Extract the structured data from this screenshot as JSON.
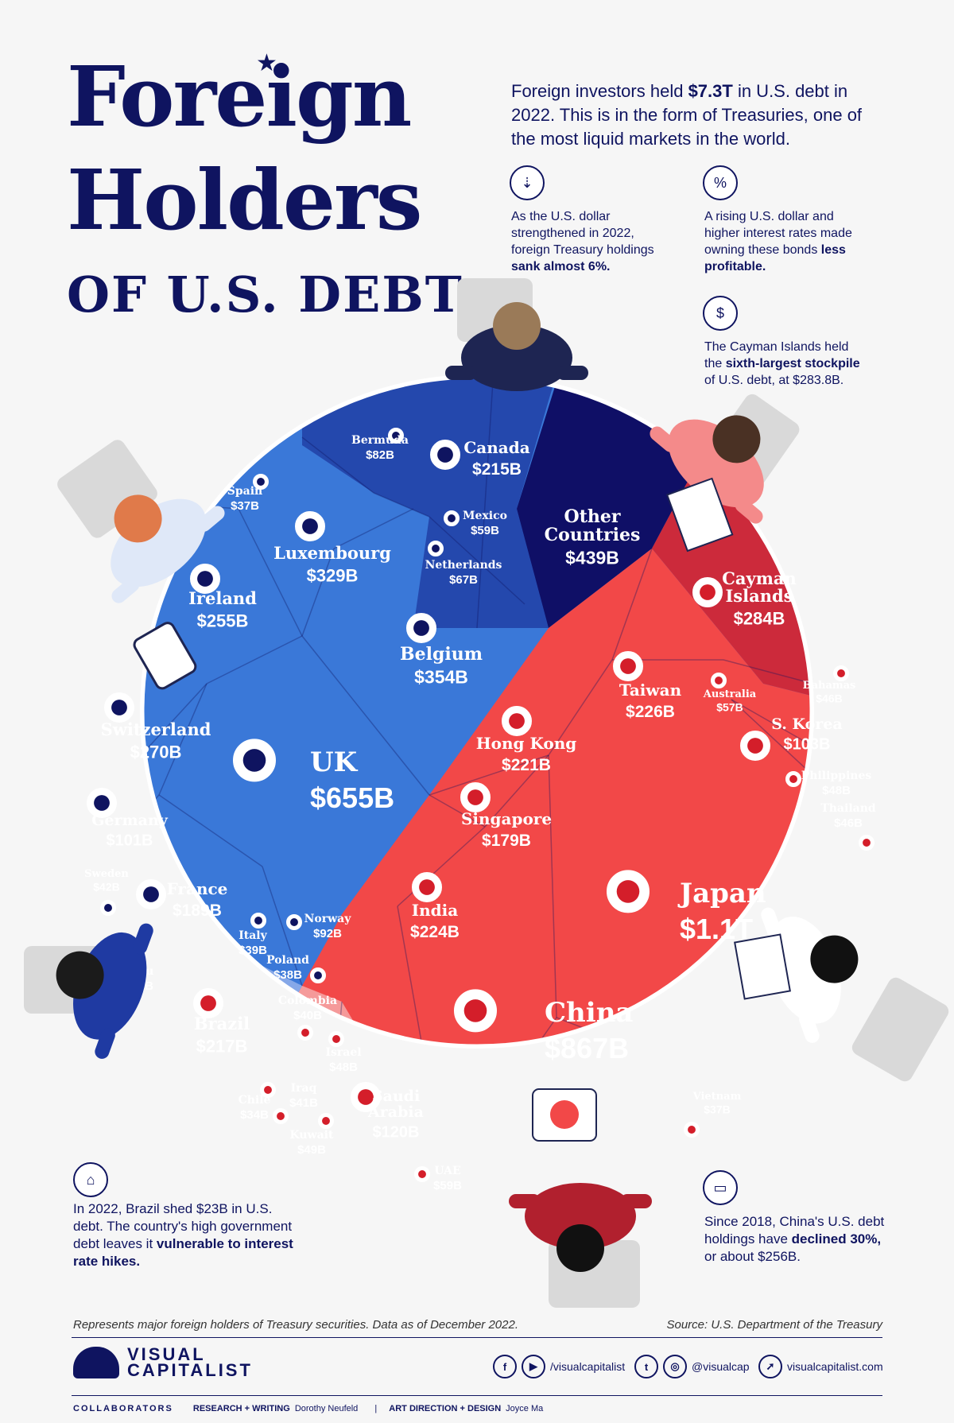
{
  "title": {
    "line1": "Foreign",
    "line2": "Holders",
    "line3": "OF U.S. DEBT"
  },
  "intro": {
    "pre": "Foreign investors held ",
    "highlight": "$7.3T",
    "post": " in U.S. debt in 2022. This is in the form of Treasuries, one of the most liquid markets in the world."
  },
  "notes": {
    "dollar": {
      "pre": "As the U.S. dollar strengthened in 2022, foreign Treasury holdings ",
      "bold": "sank almost 6%.",
      "icon": "coins-down-icon"
    },
    "rates": {
      "pre": "A rising U.S. dollar and higher interest rates made owning these bonds ",
      "bold": "less profitable.",
      "icon": "percent-up-icon"
    },
    "cayman": {
      "pre": "The Cayman Islands held the ",
      "bold": "sixth-largest stockpile",
      "post": " of U.S. debt, at $283.8B.",
      "icon": "coin-stack-icon"
    },
    "brazil": {
      "pre": "In 2022, Brazil shed $23B in U.S. debt. The country's high government debt leaves it ",
      "bold": "vulnerable to interest rate hikes.",
      "icon": "bank-icon"
    },
    "china": {
      "pre": "Since 2018, China's U.S. debt holdings have ",
      "bold": "declined 30%,",
      "post": " or about $256B.",
      "icon": "banknote-icon"
    }
  },
  "footer": {
    "footnote": "Represents major foreign holders of Treasury securities. Data as of December 2022.",
    "source": "Source: U.S. Department of the Treasury",
    "brand": "VISUAL\nCAPITALIST",
    "handle1": "/visualcapitalist",
    "handle2": "@visualcap",
    "website": "visualcapitalist.com",
    "collab_label": "COLLABORATORS",
    "research_label": "RESEARCH + WRITING",
    "research_name": "Dorothy Neufeld",
    "design_label": "ART DIRECTION + DESIGN",
    "design_name": "Joyce Ma"
  },
  "colors": {
    "europe": "#3a78d8",
    "europe_dark": "#2c5bbd",
    "americas": "#2448ad",
    "latam": "#86a8e8",
    "asia": "#f24848",
    "caribbean": "#cc2a3b",
    "middle_east": "#f59a9a",
    "other": "#0f0f66",
    "navy": "#0f1460"
  },
  "chart_data": {
    "type": "voronoi-treemap",
    "unit": "USD",
    "items": [
      {
        "country": "Japan",
        "value": "$1.1T",
        "group": "Asia-Pacific"
      },
      {
        "country": "China",
        "value": "$867B",
        "group": "Asia-Pacific"
      },
      {
        "country": "UK",
        "value": "$655B",
        "group": "Europe"
      },
      {
        "country": "Other Countries",
        "value": "$439B",
        "group": "Other"
      },
      {
        "country": "Belgium",
        "value": "$354B",
        "group": "Europe"
      },
      {
        "country": "Luxembourg",
        "value": "$329B",
        "group": "Europe"
      },
      {
        "country": "Cayman Islands",
        "value": "$284B",
        "group": "Caribbean"
      },
      {
        "country": "Switzerland",
        "value": "$270B",
        "group": "Europe"
      },
      {
        "country": "Ireland",
        "value": "$255B",
        "group": "Europe"
      },
      {
        "country": "Taiwan",
        "value": "$226B",
        "group": "Asia-Pacific"
      },
      {
        "country": "India",
        "value": "$224B",
        "group": "Asia-Pacific"
      },
      {
        "country": "Hong Kong",
        "value": "$221B",
        "group": "Asia-Pacific"
      },
      {
        "country": "Brazil",
        "value": "$217B",
        "group": "Latin America"
      },
      {
        "country": "Canada",
        "value": "$215B",
        "group": "North America"
      },
      {
        "country": "France",
        "value": "$189B",
        "group": "Europe"
      },
      {
        "country": "Singapore",
        "value": "$179B",
        "group": "Asia-Pacific"
      },
      {
        "country": "Saudi Arabia",
        "value": "$120B",
        "group": "Middle East"
      },
      {
        "country": "S. Korea",
        "value": "$103B",
        "group": "Asia-Pacific"
      },
      {
        "country": "Germany",
        "value": "$101B",
        "group": "Europe"
      },
      {
        "country": "Norway",
        "value": "$92B",
        "group": "Europe"
      },
      {
        "country": "Bermuda",
        "value": "$82B",
        "group": "North America"
      },
      {
        "country": "Netherlands",
        "value": "$67B",
        "group": "Europe"
      },
      {
        "country": "Mexico",
        "value": "$59B",
        "group": "North America"
      },
      {
        "country": "UAE",
        "value": "$59B",
        "group": "Middle East"
      },
      {
        "country": "Australia",
        "value": "$57B",
        "group": "Asia-Pacific"
      },
      {
        "country": "Kuwait",
        "value": "$49B",
        "group": "Middle East"
      },
      {
        "country": "Israel",
        "value": "$48B",
        "group": "Middle East"
      },
      {
        "country": "Philippines",
        "value": "$48B",
        "group": "Asia-Pacific"
      },
      {
        "country": "Bahamas",
        "value": "$46B",
        "group": "Caribbean"
      },
      {
        "country": "Thailand",
        "value": "$46B",
        "group": "Asia-Pacific"
      },
      {
        "country": "Sweden",
        "value": "$42B",
        "group": "Europe"
      },
      {
        "country": "Iraq",
        "value": "$41B",
        "group": "Middle East"
      },
      {
        "country": "Colombia",
        "value": "$40B",
        "group": "Latin America"
      },
      {
        "country": "Italy",
        "value": "$39B",
        "group": "Europe"
      },
      {
        "country": "Poland",
        "value": "$38B",
        "group": "Europe"
      },
      {
        "country": "Spain",
        "value": "$37B",
        "group": "Europe"
      },
      {
        "country": "Vietnam",
        "value": "$37B",
        "group": "Asia-Pacific"
      },
      {
        "country": "Chile",
        "value": "$34B",
        "group": "Latin America"
      },
      {
        "country": "Peru",
        "value": "$32B",
        "group": "Latin America"
      }
    ]
  }
}
